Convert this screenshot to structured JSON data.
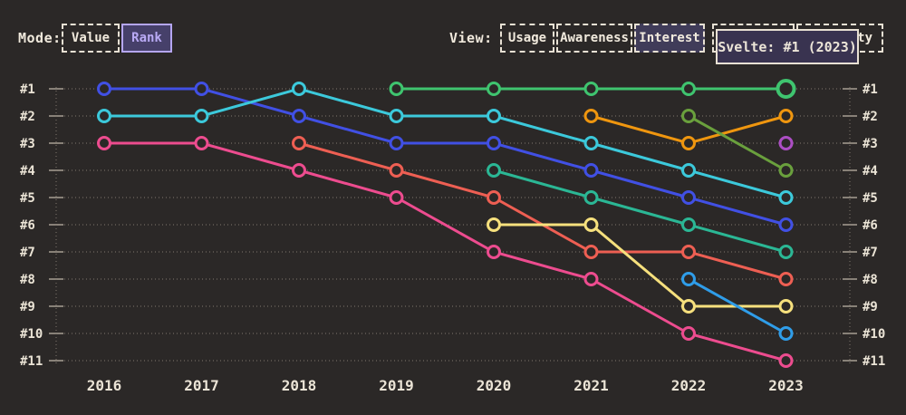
{
  "header": {
    "mode": {
      "label": "Mode:",
      "options": [
        {
          "label": "Value",
          "active": false
        },
        {
          "label": "Rank",
          "active": true
        }
      ]
    },
    "view": {
      "label": "View:",
      "options": [
        {
          "label": "Usage",
          "active": false
        },
        {
          "label": "Awareness",
          "active": false
        },
        {
          "label": "Interest",
          "active": true
        },
        {
          "label": "",
          "obscured_by_tooltip": true
        },
        {
          "label": "ty",
          "obscured_by_tooltip": true
        }
      ]
    }
  },
  "tooltip": {
    "text": "Svelte: #1 (2023)"
  },
  "chart_data": {
    "type": "line",
    "subtype": "bump-rank-chart",
    "background": "#2b2827",
    "years": [
      "2016",
      "2017",
      "2018",
      "2019",
      "2020",
      "2021",
      "2022",
      "2023"
    ],
    "rank_labels": [
      "#1",
      "#2",
      "#3",
      "#4",
      "#5",
      "#6",
      "#7",
      "#8",
      "#9",
      "#10",
      "#11"
    ],
    "ylim": [
      1,
      11
    ],
    "grid": "dotted-horizontal",
    "series": [
      {
        "name": "line-pink",
        "color": "#ed4c8f",
        "start_index": 0,
        "ranks": [
          3,
          3,
          4,
          5,
          7,
          8,
          10,
          11
        ]
      },
      {
        "name": "line-indigo",
        "color": "#4150e4",
        "start_index": 0,
        "ranks": [
          1,
          1,
          2,
          3,
          3,
          4,
          5,
          6
        ]
      },
      {
        "name": "line-cyan",
        "color": "#3cc9db",
        "start_index": 0,
        "ranks": [
          2,
          2,
          1,
          2,
          2,
          3,
          4,
          5
        ]
      },
      {
        "name": "line-salmon",
        "color": "#ee5f53",
        "start_index": 2,
        "ranks": [
          3,
          4,
          5,
          7,
          7,
          8
        ]
      },
      {
        "name": "line-teal",
        "color": "#2bb795",
        "start_index": 4,
        "ranks": [
          4,
          5,
          6,
          7
        ]
      },
      {
        "name": "line-yellow",
        "color": "#f6e07d",
        "start_index": 4,
        "ranks": [
          6,
          6,
          9,
          9
        ]
      },
      {
        "name": "line-orange",
        "color": "#ef960f",
        "start_index": 5,
        "ranks": [
          2,
          3,
          2
        ]
      },
      {
        "name": "line-olive",
        "color": "#6aa03d",
        "start_index": 6,
        "ranks": [
          2,
          4
        ]
      },
      {
        "name": "line-azure",
        "color": "#2f9de9",
        "start_index": 6,
        "ranks": [
          8,
          10
        ]
      },
      {
        "name": "line-purple",
        "color": "#ac4ec4",
        "start_index": 7,
        "ranks": [
          3
        ]
      },
      {
        "name": "Svelte",
        "color": "#3fc46f",
        "start_index": 3,
        "ranks": [
          1,
          1,
          1,
          1,
          1
        ],
        "highlight_last": true
      }
    ]
  }
}
